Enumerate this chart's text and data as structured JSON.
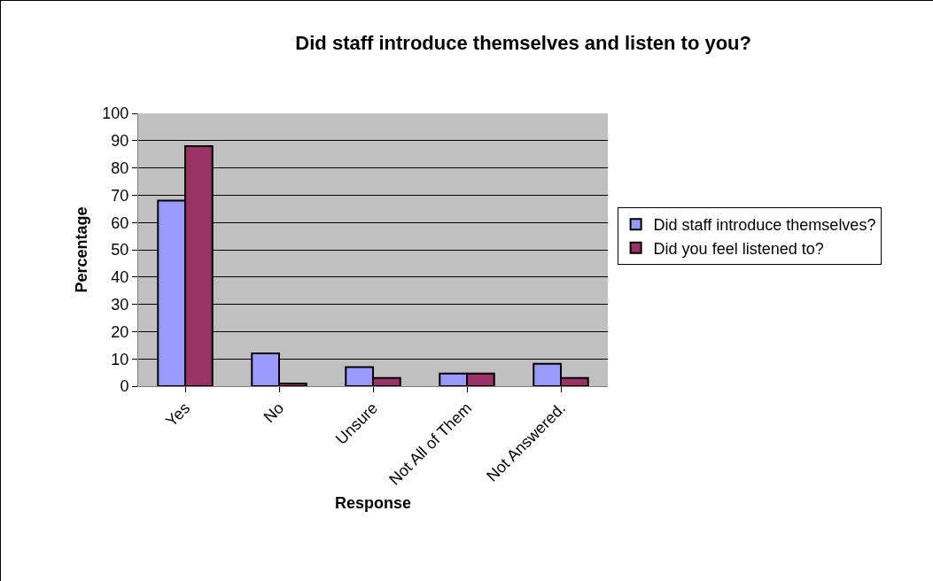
{
  "chart_data": {
    "type": "bar",
    "title": "Did staff introduce themselves and listen to you?",
    "xlabel": "Response",
    "ylabel": "Percentage",
    "categories": [
      "Yes",
      "No",
      "Unsure",
      "Not All of Them",
      "Not Answered."
    ],
    "series": [
      {
        "name": "Did staff introduce themselves?",
        "color": "#9999ff",
        "values": [
          68,
          12,
          7,
          4.6,
          8.2
        ]
      },
      {
        "name": "Did you feel listened to?",
        "color": "#993366",
        "values": [
          88,
          1,
          3,
          4.6,
          3
        ]
      }
    ],
    "ylim": [
      0,
      100
    ],
    "yticks": [
      0,
      10,
      20,
      30,
      40,
      50,
      60,
      70,
      80,
      90,
      100
    ],
    "grid": "y",
    "legend": "right"
  }
}
